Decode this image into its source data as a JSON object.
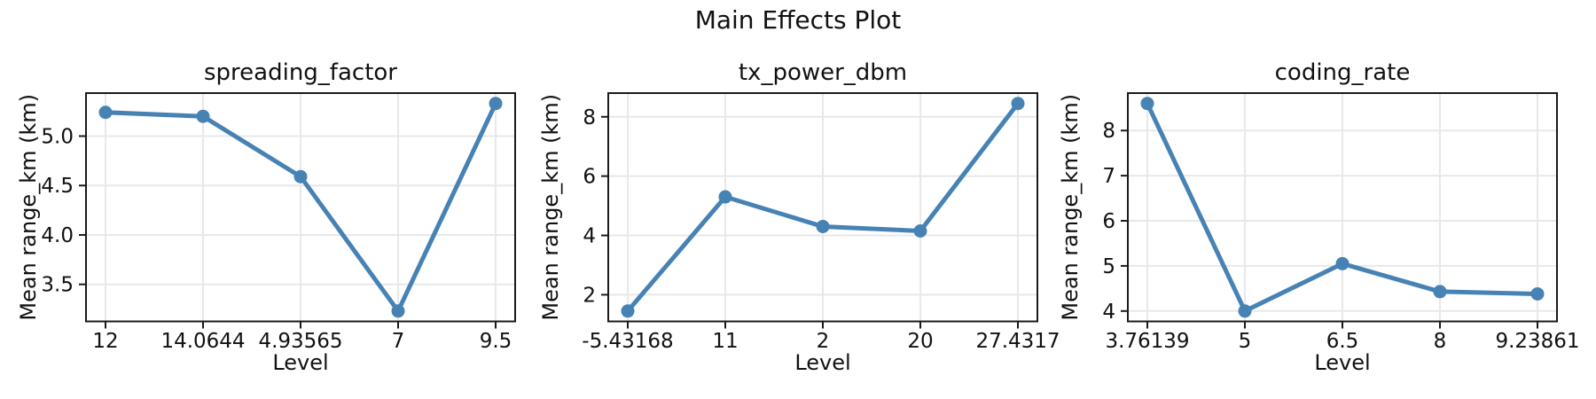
{
  "suptitle": "Main Effects Plot",
  "colors": {
    "line": "#4682B4",
    "grid": "#e8e8e8",
    "spine": "#1a1a1a",
    "text": "#111111",
    "background": "#ffffff"
  },
  "chart_data": [
    {
      "type": "line",
      "title": "spreading_factor",
      "xlabel": "Level",
      "ylabel": "Mean range_km (km)",
      "categories": [
        "12",
        "14.0644",
        "4.93565",
        "7",
        "9.5"
      ],
      "values": [
        5.24,
        5.2,
        4.59,
        3.23,
        5.33
      ],
      "ylim": [
        3.125,
        5.435
      ],
      "yticks": [
        3.5,
        4.0,
        4.5,
        5.0
      ],
      "ytick_labels": [
        "3.5",
        "4.0",
        "4.5",
        "5.0"
      ],
      "grid": true,
      "legend": false
    },
    {
      "type": "line",
      "title": "tx_power_dbm",
      "xlabel": "Level",
      "ylabel": "Mean range_km (km)",
      "categories": [
        "-5.43168",
        "11",
        "2",
        "20",
        "27.4317"
      ],
      "values": [
        1.45,
        5.3,
        4.3,
        4.15,
        8.45
      ],
      "ylim": [
        1.1,
        8.8
      ],
      "yticks": [
        2,
        4,
        6,
        8
      ],
      "ytick_labels": [
        "2",
        "4",
        "6",
        "8"
      ],
      "grid": true,
      "legend": false
    },
    {
      "type": "line",
      "title": "coding_rate",
      "xlabel": "Level",
      "ylabel": "Mean range_km (km)",
      "categories": [
        "3.76139",
        "5",
        "6.5",
        "8",
        "9.23861"
      ],
      "values": [
        8.6,
        4.0,
        5.05,
        4.43,
        4.38
      ],
      "ylim": [
        3.77,
        8.83
      ],
      "yticks": [
        4,
        5,
        6,
        7,
        8
      ],
      "ytick_labels": [
        "4",
        "5",
        "6",
        "7",
        "8"
      ],
      "grid": true,
      "legend": false
    }
  ]
}
